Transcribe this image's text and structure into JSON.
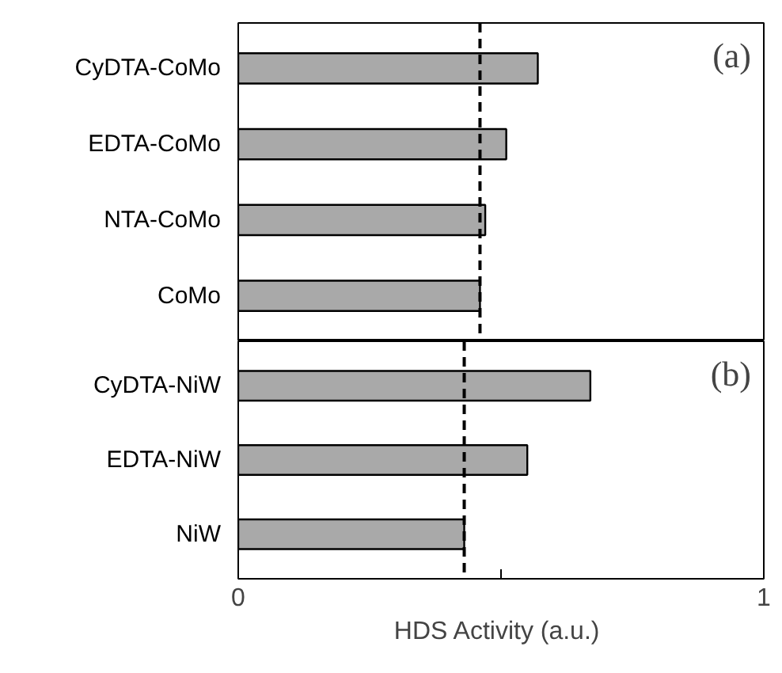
{
  "chart_data": [
    {
      "type": "bar",
      "orientation": "horizontal",
      "categories": [
        "CyDTA-CoMo",
        "EDTA-CoMo",
        "NTA-CoMo",
        "CoMo"
      ],
      "values": [
        0.57,
        0.51,
        0.47,
        0.46
      ],
      "color": "#a9a9a9",
      "xlim": [
        0,
        1
      ],
      "tick_labels": "y",
      "grid": false,
      "ref_lines": [
        {
          "axis": "x",
          "value": 0.46,
          "label": null,
          "color": "#000000",
          "line_style": "dashed"
        }
      ],
      "annotations": [
        "(a)"
      ]
    },
    {
      "type": "bar",
      "orientation": "horizontal",
      "categories": [
        "CyDTA-NiW",
        "EDTA-NiW",
        "NiW"
      ],
      "values": [
        0.67,
        0.55,
        0.43
      ],
      "color": "#a9a9a9",
      "xlim": [
        0,
        1
      ],
      "xticks": [
        0,
        {
          "value": 0.5,
          "label": null
        },
        1
      ],
      "xlabel": "HDS Activity  (a.u.)",
      "grid": false,
      "ref_lines": [
        {
          "axis": "x",
          "value": 0.43,
          "label": null,
          "color": "#000000",
          "line_style": "dashed"
        }
      ],
      "annotations": [
        "(b)"
      ]
    }
  ]
}
